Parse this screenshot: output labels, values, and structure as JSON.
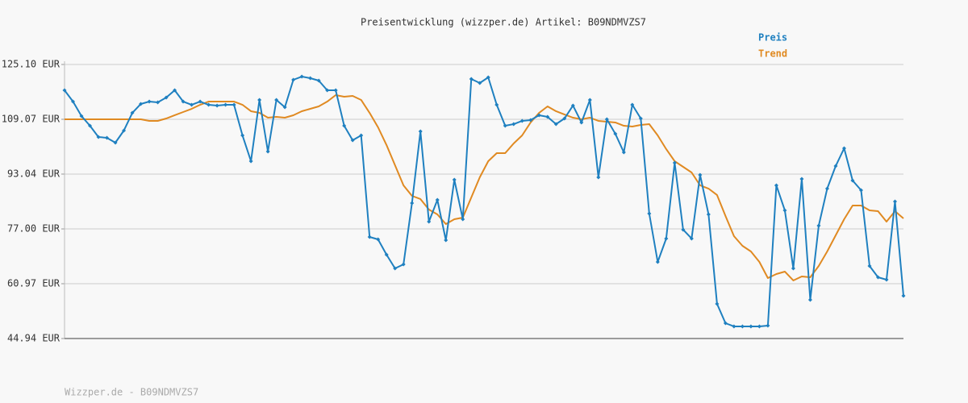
{
  "chart_data": {
    "type": "line",
    "title": "Preisentwicklung (wizzper.de) Artikel: B09NDMVZS7",
    "source": "Wizzper.de - B09NDMVZS7",
    "legend": "top-right",
    "grid": true,
    "ylim": [
      44.94,
      125.1
    ],
    "yticks": [
      {
        "value": 44.94,
        "label": "44.94 EUR"
      },
      {
        "value": 60.97,
        "label": "60.97 EUR"
      },
      {
        "value": 77.0,
        "label": "77.00 EUR"
      },
      {
        "value": 93.04,
        "label": "93.04 EUR"
      },
      {
        "value": 109.07,
        "label": "109.07 EUR"
      },
      {
        "value": 125.1,
        "label": "125.10 EUR"
      }
    ],
    "series": [
      {
        "name": "Preis",
        "color": "#1f80c0",
        "markers": true,
        "values": [
          117.56,
          114.25,
          110.01,
          107.18,
          103.88,
          103.65,
          102.23,
          105.77,
          110.95,
          113.55,
          114.25,
          114.02,
          115.43,
          117.56,
          114.25,
          113.31,
          114.25,
          113.31,
          113.08,
          113.31,
          113.31,
          104.35,
          96.81,
          114.73,
          99.64,
          114.73,
          112.6,
          120.62,
          121.56,
          121.09,
          120.38,
          117.56,
          117.56,
          107.18,
          102.94,
          104.35,
          74.65,
          73.94,
          69.46,
          65.45,
          66.63,
          84.55,
          105.53,
          79.13,
          85.49,
          73.7,
          91.39,
          79.83,
          120.86,
          119.68,
          121.33,
          113.31,
          107.18,
          107.65,
          108.6,
          108.83,
          110.25,
          109.78,
          107.65,
          109.3,
          113.08,
          108.13,
          114.73,
          92.09,
          109.07,
          104.82,
          99.4,
          113.31,
          109.3,
          81.48,
          67.34,
          74.18,
          96.34,
          76.77,
          74.18,
          92.8,
          81.25,
          55.08,
          49.42,
          48.48,
          48.48,
          48.48,
          48.48,
          48.71,
          89.74,
          82.43,
          65.45,
          91.62,
          56.26,
          77.95,
          88.79,
          95.39,
          100.58,
          91.15,
          88.32,
          66.16,
          62.86,
          62.15,
          85.02,
          57.44
        ]
      },
      {
        "name": "Trend",
        "color": "#e08a22",
        "markers": false,
        "values": [
          109.07,
          109.07,
          109.07,
          109.07,
          109.07,
          109.07,
          109.07,
          109.07,
          109.07,
          109.07,
          108.6,
          108.6,
          109.3,
          110.25,
          111.19,
          112.13,
          113.31,
          114.25,
          114.25,
          114.25,
          114.25,
          113.31,
          111.43,
          110.95,
          109.54,
          109.78,
          109.54,
          110.25,
          111.43,
          112.13,
          112.84,
          114.25,
          116.14,
          115.67,
          115.91,
          114.73,
          110.95,
          106.71,
          101.52,
          95.63,
          89.74,
          86.67,
          85.73,
          82.66,
          81.25,
          78.42,
          79.83,
          80.31,
          86.2,
          92.09,
          96.81,
          99.17,
          99.17,
          102.0,
          104.35,
          108.13,
          110.95,
          112.84,
          111.43,
          110.48,
          109.54,
          109.07,
          109.54,
          108.6,
          108.36,
          108.13,
          107.18,
          106.95,
          107.42,
          107.65,
          104.35,
          100.35,
          96.81,
          95.16,
          93.51,
          89.74,
          88.79,
          86.91,
          80.78,
          74.88,
          72.05,
          70.4,
          67.34,
          62.62,
          63.8,
          64.51,
          61.92,
          63.1,
          62.86,
          66.16,
          70.4,
          75.12,
          79.83,
          83.84,
          83.84,
          82.43,
          82.19,
          79.13,
          82.19,
          80.07
        ]
      }
    ]
  }
}
